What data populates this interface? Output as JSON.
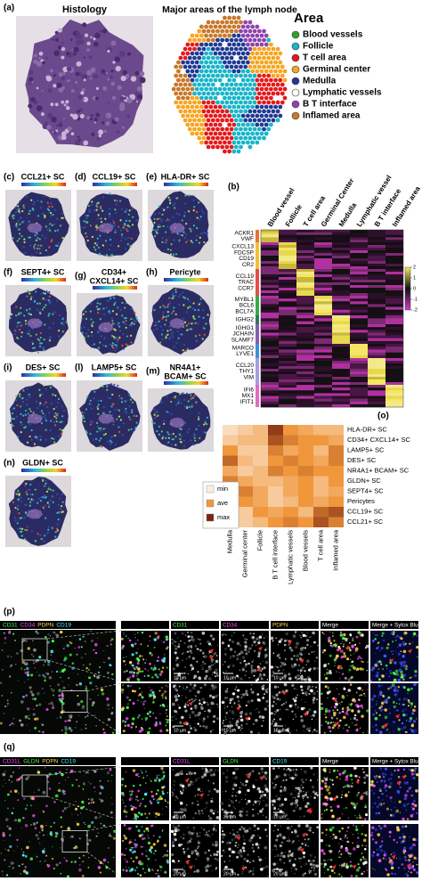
{
  "panel_a": {
    "label": "(a)",
    "histology_title": "Histology",
    "map_title": "Major areas of the lymph node",
    "legend_title": "Area",
    "legend": [
      {
        "name": "Blood vessels",
        "color": "#33a02c"
      },
      {
        "name": "Follicle",
        "color": "#19b5c9"
      },
      {
        "name": "T cell area",
        "color": "#e31a1c"
      },
      {
        "name": "Germinal center",
        "color": "#f5a623"
      },
      {
        "name": "Medulla",
        "color": "#1f3a93"
      },
      {
        "name": "Lymphatic vessels",
        "color": "#ffffff"
      },
      {
        "name": "B T interface",
        "color": "#8e44ad"
      },
      {
        "name": "Inflamed area",
        "color": "#c8782a"
      }
    ]
  },
  "feature_panels": [
    {
      "label": "(c)",
      "title_lines": [
        "CCL21+ SC"
      ]
    },
    {
      "label": "(d)",
      "title_lines": [
        "CCL19+ SC"
      ]
    },
    {
      "label": "(e)",
      "title_lines": [
        "HLA-DR+ SC"
      ]
    },
    {
      "label": "(f)",
      "title_lines": [
        "SEPT4+ SC"
      ]
    },
    {
      "label": "(g)",
      "title_lines": [
        "CD34+",
        "CXCL14+ SC"
      ]
    },
    {
      "label": "(h)",
      "title_lines": [
        "Pericyte"
      ]
    },
    {
      "label": "(i)",
      "title_lines": [
        "DES+ SC"
      ]
    },
    {
      "label": "(l)",
      "title_lines": [
        "LAMP5+ SC"
      ]
    },
    {
      "label": "(m)",
      "title_lines": [
        "NR4A1+",
        "BCAM+ SC"
      ]
    },
    {
      "label": "(n)",
      "title_lines": [
        "GLDN+ SC"
      ]
    }
  ],
  "panel_b": {
    "label": "(b)",
    "columns": [
      "Blood vessel",
      "Follicle",
      "T cell area",
      "Germinal Center",
      "Medulla",
      "Lymphatic vessel",
      "B T interface",
      "Inflamed area"
    ],
    "gene_groups": [
      {
        "genes": [
          "ACKR1",
          "VWF"
        ],
        "color": "#e8703a",
        "column": 0
      },
      {
        "genes": [
          "CXCL13",
          "FDCSP",
          "CD19",
          "CR2"
        ],
        "color": "#f2c12e",
        "column": 1
      },
      {
        "genes": [
          "CCL19",
          "TRAC",
          "CCR7"
        ],
        "color": "#e84a4a",
        "column": 2
      },
      {
        "genes": [
          "MYBL1",
          "BCL6",
          "BCL7A"
        ],
        "color": "#3aa845",
        "column": 3
      },
      {
        "genes": [
          "IGHG2"
        ],
        "color": "#2c7a5a",
        "column": 4
      },
      {
        "genes": [
          "IGHG1",
          "JCHAIN",
          "SLAMF7"
        ],
        "color": "#8a5bb0",
        "column": 4
      },
      {
        "genes": [
          "MARCO",
          "LYVE1"
        ],
        "color": "#3b8fd9",
        "column": 5
      },
      {
        "genes": [
          "CCL20",
          "THY1",
          "VIM"
        ],
        "color": "#a99be0",
        "column": 6
      },
      {
        "genes": [
          "IFI6",
          "MX1",
          "IFIT1"
        ],
        "color": "#e06cc4",
        "column": 7
      }
    ],
    "colorbar_ticks": [
      2,
      1,
      0,
      -1,
      -2
    ],
    "colorbar_lim": [
      -2,
      2
    ]
  },
  "panel_o": {
    "label": "(o)",
    "rows": [
      "HLA-DR+ SC",
      "CD34+ CXCL14+ SC",
      "LAMP5+ SC",
      "DES+ SC",
      "NR4A1+ BCAM+ SC",
      "GLDN+ SC",
      "SEPT4+ SC",
      "Pericytes",
      "CCL19+ SC",
      "CCL21+ SC"
    ],
    "columns": [
      "Medulla",
      "Germinal center",
      "Follicle",
      "B T cell interface",
      "Lymphatic vessels",
      "Blood vessels",
      "T cell area",
      "Inflamed area"
    ],
    "values": [
      [
        0.1,
        0.2,
        0.3,
        0.9,
        0.5,
        0.4,
        0.3,
        0.3
      ],
      [
        0.2,
        0.3,
        0.3,
        0.8,
        0.6,
        0.5,
        0.5,
        0.4
      ],
      [
        0.5,
        0.2,
        0.2,
        0.6,
        0.4,
        0.5,
        0.3,
        0.6
      ],
      [
        0.7,
        0.3,
        0.2,
        0.5,
        0.6,
        0.5,
        0.4,
        0.6
      ],
      [
        0.4,
        0.2,
        0.3,
        0.6,
        0.5,
        0.6,
        0.5,
        0.5
      ],
      [
        0.6,
        0.4,
        0.3,
        0.3,
        0.4,
        0.5,
        0.3,
        0.5
      ],
      [
        0.5,
        0.6,
        0.4,
        0.2,
        0.4,
        0.5,
        0.3,
        0.4
      ],
      [
        0.9,
        0.5,
        0.4,
        0.2,
        0.3,
        0.5,
        0.4,
        0.5
      ],
      [
        0.3,
        0.2,
        0.5,
        0.4,
        0.5,
        0.3,
        0.7,
        0.8
      ],
      [
        0.3,
        0.2,
        0.3,
        0.5,
        0.6,
        0.5,
        0.8,
        0.6
      ]
    ],
    "legend": [
      {
        "name": "min",
        "color": "#fbeee0"
      },
      {
        "name": "ave",
        "color": "#f0973c"
      },
      {
        "name": "max",
        "color": "#7b2410"
      }
    ]
  },
  "panel_p": {
    "label": "(p)",
    "stains": [
      {
        "name": "CD31",
        "color": "#4cff4c"
      },
      {
        "name": "CD34",
        "color": "#ff4cff"
      },
      {
        "name": "PDPN",
        "color": "#ffd84c"
      },
      {
        "name": "CD19",
        "color": "#4cf0ff"
      }
    ],
    "channels": [
      {
        "name": "CD31",
        "color": "#4cff4c"
      },
      {
        "name": "CD34",
        "color": "#ff4cff"
      },
      {
        "name": "PDPN",
        "color": "#ffd84c"
      },
      {
        "name": "Merge",
        "color": "#ffffff"
      },
      {
        "name": "Merge + Sytox Blue",
        "color": "#ffffff"
      }
    ],
    "scale_bar": "10 µm"
  },
  "panel_q": {
    "label": "(q)",
    "stains": [
      {
        "name": "CD31L",
        "color": "#ff4cff"
      },
      {
        "name": "GLDN",
        "color": "#4cff4c"
      },
      {
        "name": "PDPN",
        "color": "#ffd84c"
      },
      {
        "name": "CD19",
        "color": "#4cf0ff"
      }
    ],
    "channels": [
      {
        "name": "CD31L",
        "color": "#ff4cff"
      },
      {
        "name": "GLDN",
        "color": "#4cff4c"
      },
      {
        "name": "CD19",
        "color": "#4cf0ff"
      },
      {
        "name": "Merge",
        "color": "#ffffff"
      },
      {
        "name": "Merge + Sytox Blue",
        "color": "#ffffff"
      }
    ],
    "scale_bar": "20 µm"
  }
}
